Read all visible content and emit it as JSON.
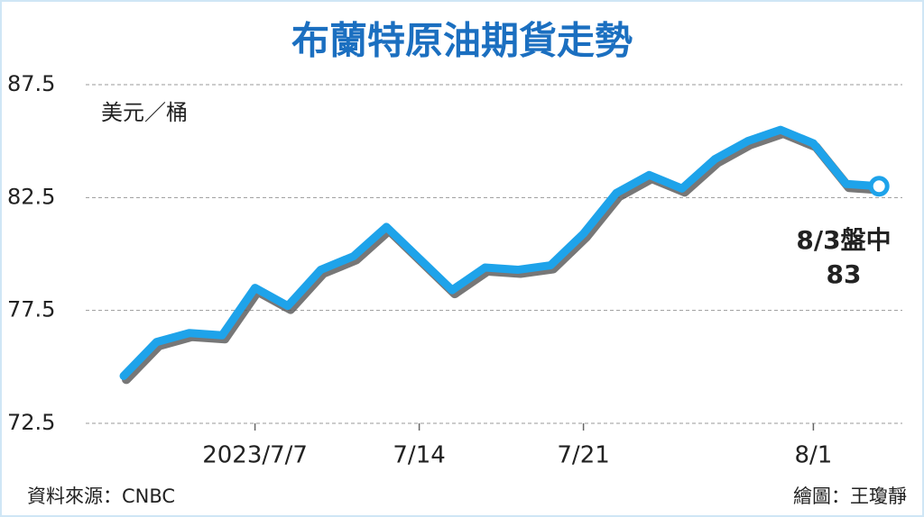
{
  "chart_data": {
    "type": "line",
    "title": "布蘭特原油期貨走勢",
    "y_label": "美元／桶",
    "categories": [
      null,
      null,
      null,
      null,
      "2023/7/7",
      null,
      null,
      null,
      null,
      "7/14",
      null,
      null,
      null,
      null,
      "7/21",
      null,
      null,
      null,
      null,
      null,
      null,
      "8/1",
      null,
      null
    ],
    "values": [
      74.6,
      76.1,
      76.5,
      76.4,
      78.5,
      77.7,
      79.3,
      79.9,
      81.2,
      79.8,
      78.4,
      79.4,
      79.3,
      79.5,
      80.9,
      82.7,
      83.5,
      82.9,
      84.2,
      85.0,
      85.5,
      84.9,
      83.1,
      83
    ],
    "color": "#1ea3ea",
    "ylim": [
      72.5,
      87.5
    ],
    "yticks": [
      72.5,
      77.5,
      82.5,
      87.5
    ],
    "grid": true,
    "last_point_marker": true,
    "annotation": "8/3盤中",
    "source": "資料來源：CNBC",
    "credit": "繪圖：王瓊靜"
  }
}
